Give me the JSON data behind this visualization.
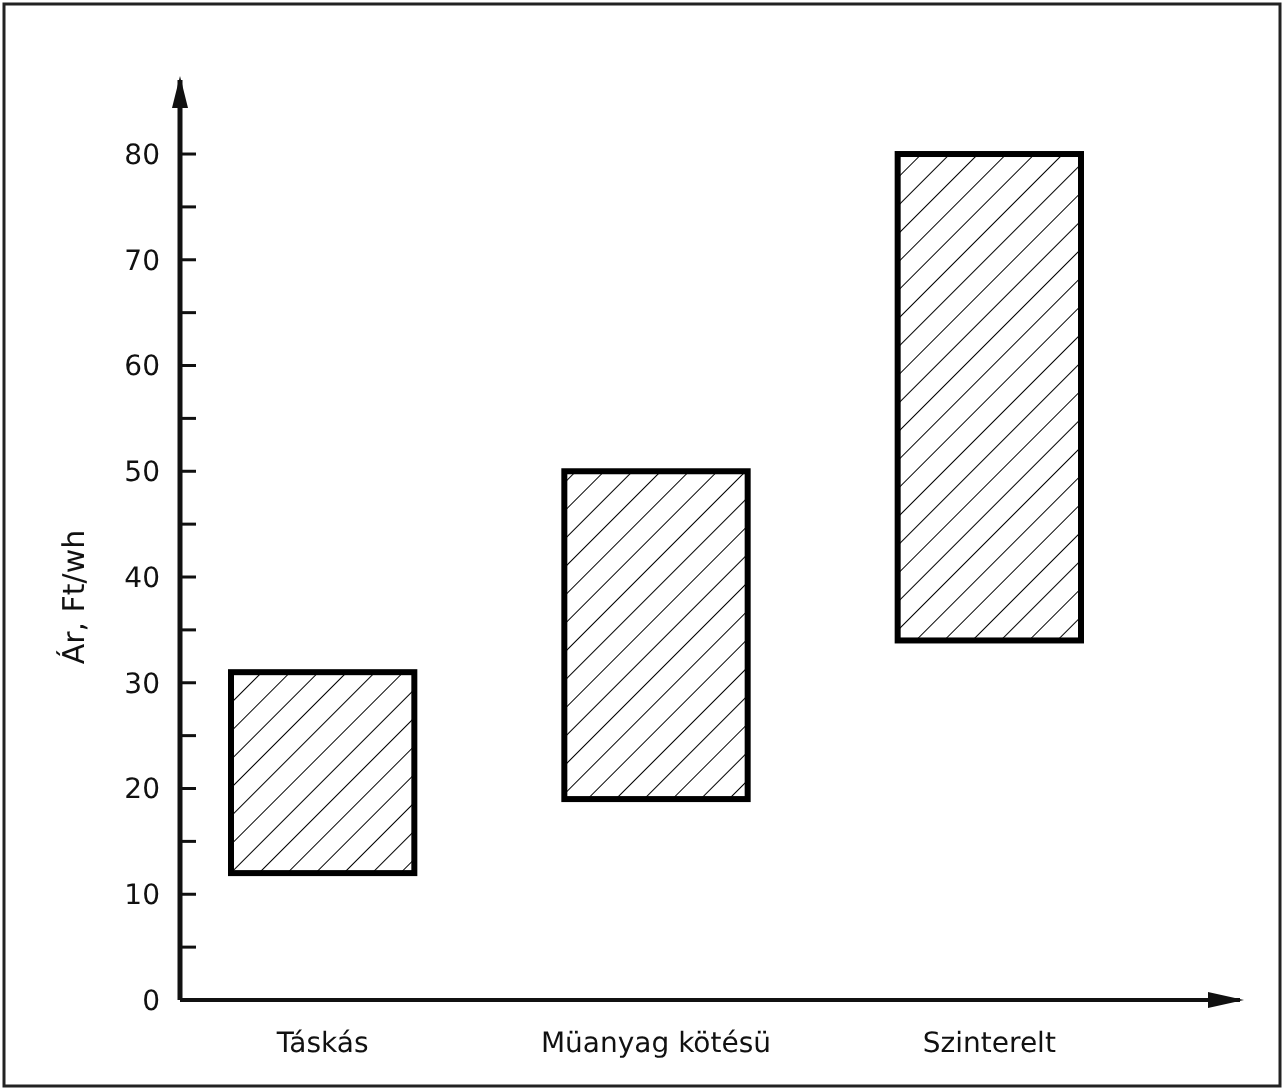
{
  "chart_data": {
    "type": "bar",
    "ylabel": "Ár, Ft/wh",
    "categories": [
      "Táskás",
      "Müanyag kötésü",
      "Szinterelt"
    ],
    "values": [
      19,
      31,
      46
    ],
    "base": [
      12,
      19,
      34
    ],
    "color": "#000000",
    "ylim": [
      0,
      87
    ],
    "yticks": [
      0,
      {
        "value": 5,
        "label": null
      },
      10,
      {
        "value": 15,
        "label": null
      },
      20,
      {
        "value": 25,
        "label": null
      },
      30,
      {
        "value": 35,
        "label": null
      },
      40,
      {
        "value": 45,
        "label": null
      },
      50,
      {
        "value": 55,
        "label": null
      },
      60,
      {
        "value": 65,
        "label": null
      },
      70,
      {
        "value": 75,
        "label": null
      },
      80
    ],
    "grid": false
  }
}
